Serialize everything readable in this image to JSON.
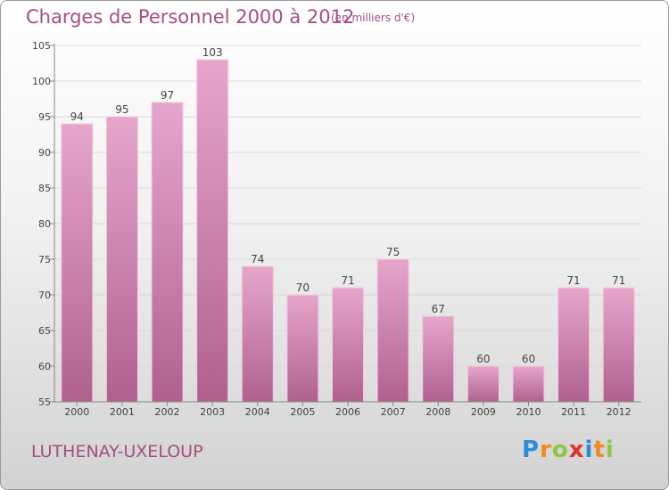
{
  "header": {
    "title": "Charges de Personnel 2000 à 2012",
    "subtitle": "(en milliers d'€)"
  },
  "footer": {
    "commune": "LUTHENAY-UXELOUP",
    "logo_text": "Proxiti",
    "logo_letters": [
      {
        "ch": "P",
        "color": "#2a8fd6"
      },
      {
        "ch": "r",
        "color": "#f08a1c"
      },
      {
        "ch": "o",
        "color": "#8dc63f"
      },
      {
        "ch": "x",
        "color": "#e2312d"
      },
      {
        "ch": "i",
        "color": "#2a8fd6"
      },
      {
        "ch": "t",
        "color": "#f08a1c"
      },
      {
        "ch": "i",
        "color": "#8dc63f"
      }
    ]
  },
  "chart_data": {
    "type": "bar",
    "title": "Charges de Personnel 2000 à 2012",
    "subtitle": "(en milliers d'€)",
    "categories": [
      "2000",
      "2001",
      "2002",
      "2003",
      "2004",
      "2005",
      "2006",
      "2007",
      "2008",
      "2009",
      "2010",
      "2011",
      "2012"
    ],
    "values": [
      94,
      95,
      97,
      103,
      74,
      70,
      71,
      75,
      67,
      60,
      60,
      71,
      71
    ],
    "ylim": [
      55,
      105
    ],
    "yticks": [
      55,
      60,
      65,
      70,
      75,
      80,
      85,
      90,
      95,
      100,
      105
    ],
    "grid": true,
    "colors": {
      "bar_top": "#e6a6cc",
      "bar_bottom": "#b0618e",
      "bar_edge": "#f2c8e0",
      "text": "#a64d7f",
      "axis": "#888888",
      "grid": "#d9d9d9"
    }
  }
}
